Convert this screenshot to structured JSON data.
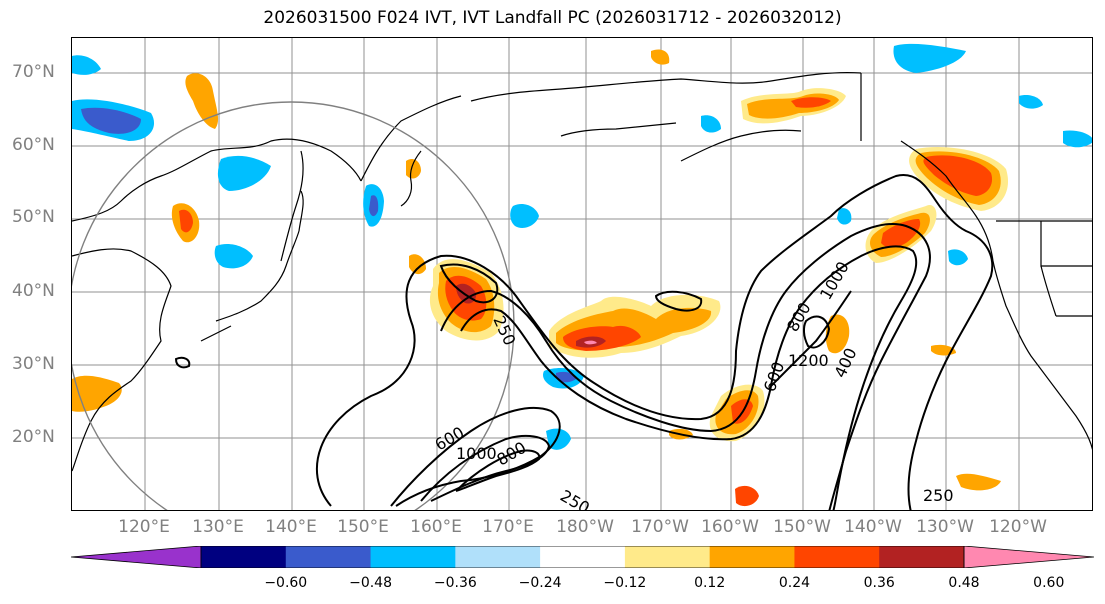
{
  "title": "2026031500 F024 IVT, IVT Landfall PC (2026031712 - 2026032012)",
  "lat_labels": [
    "70°N",
    "60°N",
    "50°N",
    "40°N",
    "30°N",
    "20°N"
  ],
  "lon_labels": [
    "120°E",
    "130°E",
    "140°E",
    "150°E",
    "160°E",
    "170°E",
    "180°W",
    "170°W",
    "160°W",
    "150°W",
    "140°W",
    "130°W",
    "120°W"
  ],
  "contour_labels": [
    "250",
    "250",
    "250",
    "600",
    "600",
    "800",
    "800",
    "1000",
    "1000",
    "1200",
    "400"
  ],
  "colorbar": {
    "colors": [
      "#9932cc",
      "#000080",
      "#3a5bcc",
      "#00bfff",
      "#b0e0fa",
      "#ffffff",
      "#ffea8a",
      "#ffa500",
      "#ff4500",
      "#b22222",
      "#ff88b0"
    ],
    "ticks": [
      "−0.60",
      "−0.48",
      "−0.36",
      "−0.24",
      "−0.12",
      "0.12",
      "0.24",
      "0.36",
      "0.48",
      "0.60"
    ]
  },
  "colors": {
    "grid": "#808080",
    "coast": "#000000",
    "contour": "#000000",
    "circle": "#808080"
  }
}
